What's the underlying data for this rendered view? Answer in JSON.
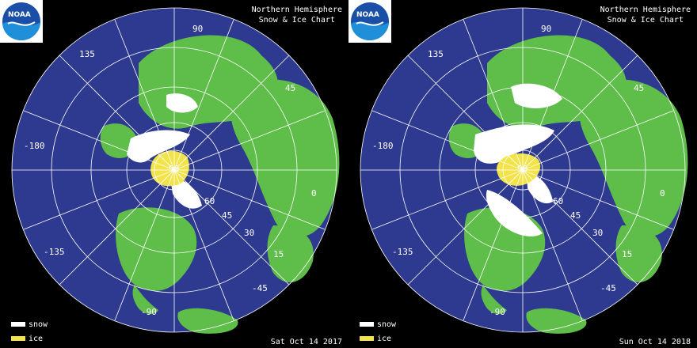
{
  "title_line1": "Northern Hemisphere",
  "title_line2": "Snow & Ice Chart",
  "logo_text": "NOAA",
  "legend": {
    "snow": "snow",
    "ice": "ice",
    "snow_color": "#ffffff",
    "ice_color": "#f2e34a"
  },
  "colors": {
    "ocean": "#2e3a8f",
    "land": "#5fbd4a",
    "grid": "#ffffff",
    "background": "#000000"
  },
  "panels": [
    {
      "date": "Sat Oct 14  2017"
    },
    {
      "date": "Sun Oct 14  2018"
    }
  ],
  "map_labels": {
    "lon_90": "90",
    "lon_135": "135",
    "lon_45": "45",
    "lon_180": "-180",
    "lon_0": "0",
    "lon_neg135": "-135",
    "lon_neg90": "-90",
    "lon_neg45": "-45",
    "lat_90": "90",
    "lat_60": "60",
    "lat_45": "45",
    "lat_30": "30",
    "lat_15": "15"
  }
}
